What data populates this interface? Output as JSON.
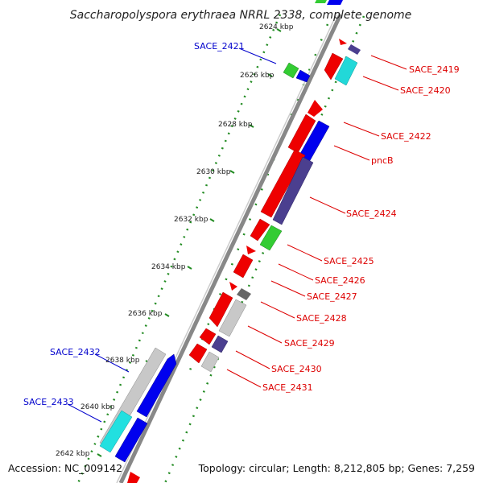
{
  "title": "Saccharopolyspora erythraea NRRL 2338, complete genome",
  "footer": {
    "accession": "Accession: NC_009142",
    "topology": "Topology: circular; Length: 8,212,805 bp; Genes: 7,259"
  },
  "colors": {
    "forward_label": "#0000cc",
    "reverse_label": "#dd0000",
    "backbone": "#888888",
    "tick_track": "#228b22"
  },
  "kbp_ticks": [
    "2624 kbp",
    "2626 kbp",
    "2628 kbp",
    "2630 kbp",
    "2632 kbp",
    "2634 kbp",
    "2636 kbp",
    "2638 kbp",
    "2640 kbp",
    "2642 kbp"
  ],
  "labels": {
    "forward": [
      "SACE_2421",
      "SACE_2432",
      "SACE_2433"
    ],
    "reverse": [
      "SACE_2419",
      "SACE_2420",
      "SACE_2422",
      "pncB",
      "SACE_2424",
      "SACE_2425",
      "SACE_2426",
      "SACE_2427",
      "SACE_2428",
      "SACE_2429",
      "SACE_2430",
      "SACE_2431"
    ]
  }
}
